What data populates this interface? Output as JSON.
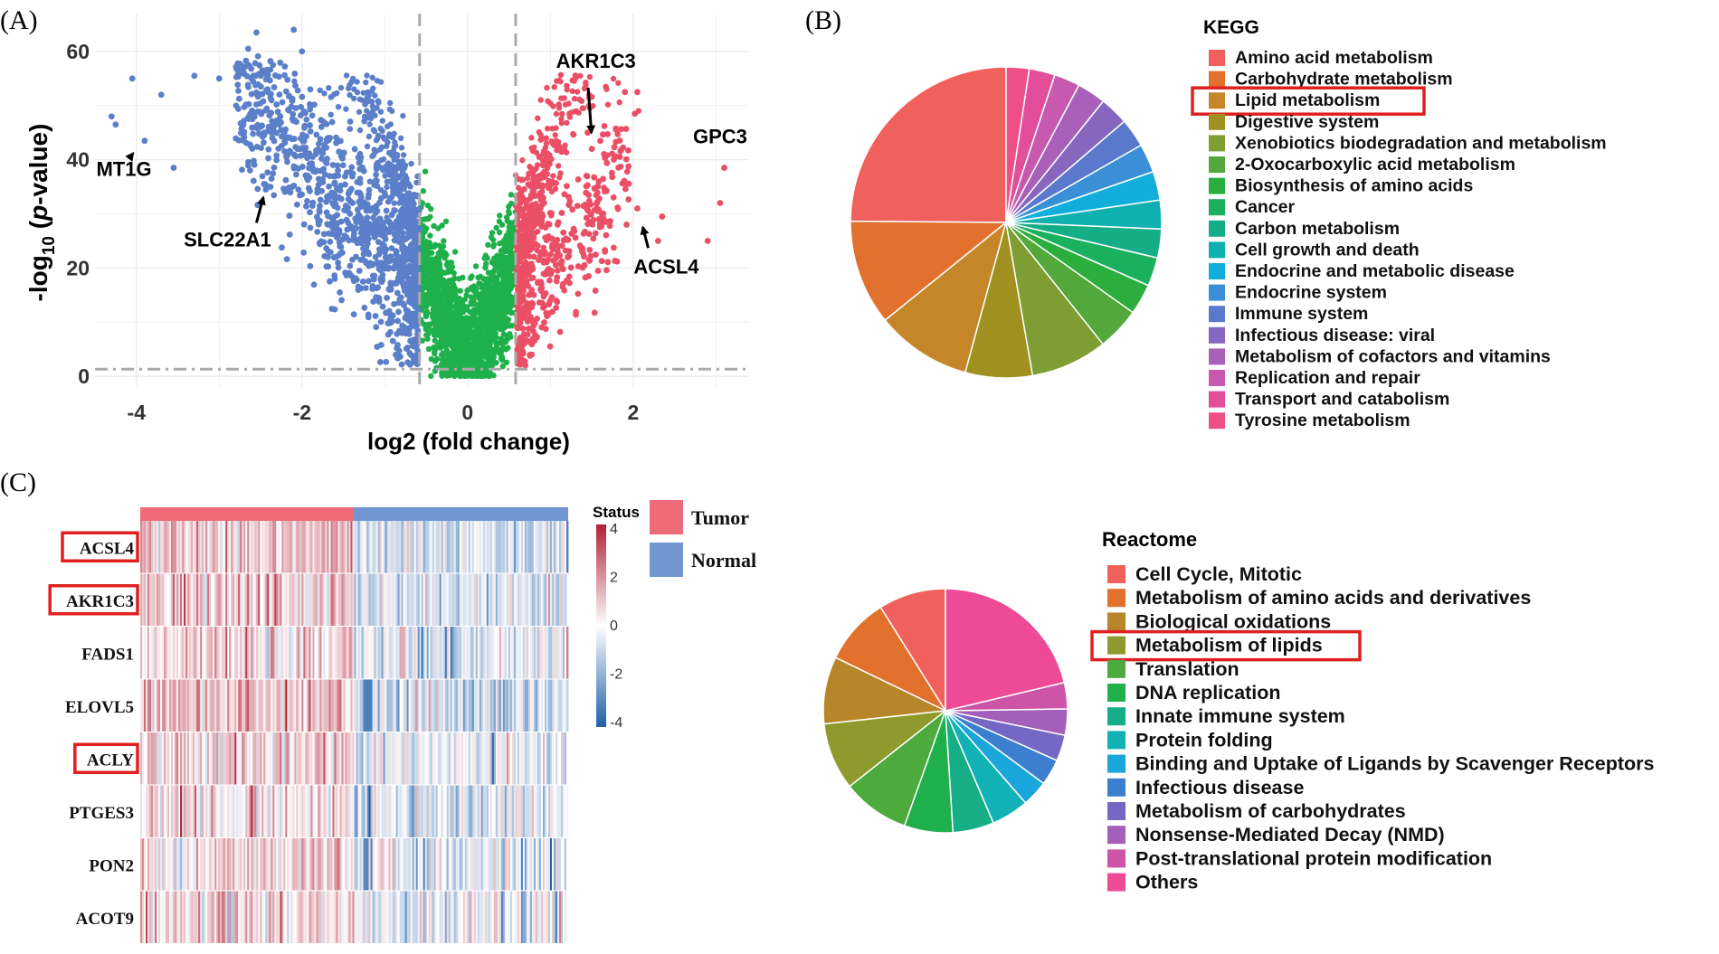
{
  "panels": {
    "a": "(A)",
    "b": "(B)",
    "c": "(C)"
  },
  "volcano": {
    "type": "scatter",
    "xlabel": "log2 (fold change)",
    "ylabel_prefix": "-log",
    "ylabel_sub": "10",
    "ylabel_open": " (",
    "ylabel_italic": "p",
    "ylabel_close": "-value)",
    "xlim": [
      -4.5,
      3.4
    ],
    "ylim": [
      -2,
      67
    ],
    "xticks": [
      -4,
      -2,
      0,
      2
    ],
    "yticks": [
      0,
      20,
      40,
      60
    ],
    "thresholds": {
      "log2fc": [
        -0.58,
        0.58
      ],
      "neglog10p": 1.3
    },
    "colors": {
      "down": "#5B7FC8",
      "ns": "#1FB04B",
      "up": "#EA4F66",
      "grid": "#ECECEC",
      "threshold": "#AAAAAA"
    },
    "extreme_down_points": [
      [
        -4.3,
        48
      ],
      [
        -4.25,
        46.5
      ],
      [
        -4.05,
        55
      ],
      [
        -3.9,
        43.5
      ],
      [
        -3.7,
        52
      ],
      [
        -3.55,
        38.5
      ],
      [
        -3.3,
        55.5
      ],
      [
        -3.0,
        55
      ],
      [
        -2.65,
        60.5
      ],
      [
        -2.55,
        63.5
      ],
      [
        -2.5,
        55.5
      ],
      [
        -2.35,
        57.5
      ],
      [
        -2.1,
        64
      ],
      [
        -2.0,
        60
      ],
      [
        -1.9,
        53
      ]
    ],
    "extreme_up_points": [
      [
        1.45,
        45
      ],
      [
        1.5,
        42
      ],
      [
        1.9,
        52.5
      ],
      [
        2.05,
        52.5
      ],
      [
        2.02,
        48.5
      ],
      [
        1.92,
        28
      ],
      [
        2.05,
        31
      ],
      [
        2.35,
        29.5
      ],
      [
        2.3,
        25
      ],
      [
        2.9,
        25
      ],
      [
        3.05,
        32
      ],
      [
        3.1,
        38.5
      ]
    ],
    "annotations": [
      {
        "label": "AKR1C3",
        "x": 1.5,
        "y": 44,
        "lx": 1.55,
        "ly": 57
      },
      {
        "label": "GPC3",
        "x": 3.1,
        "y": 39,
        "lx": 3.05,
        "ly": 43
      },
      {
        "label": "ACSL4",
        "x": 2.1,
        "y": 28.5,
        "lx": 2.4,
        "ly": 19
      },
      {
        "label": "MT1G",
        "x": -4.0,
        "y": 42,
        "lx": -4.15,
        "ly": 37
      },
      {
        "label": "SLC22A1",
        "x": -2.45,
        "y": 34,
        "lx": -2.9,
        "ly": 24
      }
    ]
  },
  "kegg": {
    "title": "KEGG",
    "type": "pie",
    "highlight": "Lipid metabolism",
    "slices": [
      {
        "label": "Amino acid metabolism",
        "value": 25,
        "color": "#F0605D"
      },
      {
        "label": "Carbohydrate metabolism",
        "value": 11,
        "color": "#E1712C"
      },
      {
        "label": "Lipid metabolism",
        "value": 10,
        "color": "#C5862A"
      },
      {
        "label": "Digestive system",
        "value": 7,
        "color": "#A0901F"
      },
      {
        "label": "Xenobiotics biodegradation and metabolism",
        "value": 8,
        "color": "#7E9D32"
      },
      {
        "label": "2-Oxocarboxylic acid metabolism",
        "value": 4.5,
        "color": "#52A83B"
      },
      {
        "label": "Biosynthesis of amino acids",
        "value": 3.2,
        "color": "#2CAE3F"
      },
      {
        "label": "Cancer",
        "value": 3,
        "color": "#1BB05E"
      },
      {
        "label": "Carbon metabolism",
        "value": 3,
        "color": "#14AE86"
      },
      {
        "label": "Cell growth and death",
        "value": 3,
        "color": "#10B0B0"
      },
      {
        "label": "Endocrine and metabolic disease",
        "value": 3,
        "color": "#11AEDC"
      },
      {
        "label": "Endocrine system",
        "value": 3,
        "color": "#3A8FD7"
      },
      {
        "label": "Immune system",
        "value": 3,
        "color": "#5B79CC"
      },
      {
        "label": "Infectious disease: viral",
        "value": 3,
        "color": "#8766C0"
      },
      {
        "label": "Metabolism of cofactors and vitamins",
        "value": 3,
        "color": "#A860B8"
      },
      {
        "label": "Replication and repair",
        "value": 2.7,
        "color": "#C75AAE"
      },
      {
        "label": "Transport and catabolism",
        "value": 2.7,
        "color": "#E24E9C"
      },
      {
        "label": "Tyrosine metabolism",
        "value": 2.4,
        "color": "#EE4F86"
      }
    ]
  },
  "reactome": {
    "title": "Reactome",
    "type": "pie",
    "highlight": "Metabolism of lipids",
    "slices": [
      {
        "label": "Cell Cycle, Mitotic",
        "value": 9,
        "color": "#F0605D"
      },
      {
        "label": "Metabolism of amino acids and derivatives",
        "value": 9,
        "color": "#E1712C"
      },
      {
        "label": "Biological oxidations",
        "value": 9,
        "color": "#B8862A"
      },
      {
        "label": "Metabolism of lipids",
        "value": 9,
        "color": "#8F9A2E"
      },
      {
        "label": "Translation",
        "value": 9,
        "color": "#4DAA3C"
      },
      {
        "label": "DNA replication",
        "value": 6.5,
        "color": "#1FB04B"
      },
      {
        "label": "Innate immune system",
        "value": 5.5,
        "color": "#15AE86"
      },
      {
        "label": "Protein folding",
        "value": 5,
        "color": "#12B1B5"
      },
      {
        "label": "Binding and Uptake of Ligands by Scavenger Receptors",
        "value": 3.5,
        "color": "#1AA6DB"
      },
      {
        "label": "Infectious disease",
        "value": 3.5,
        "color": "#3C7FCF"
      },
      {
        "label": "Metabolism of carbohydrates",
        "value": 3.5,
        "color": "#7568C4"
      },
      {
        "label": "Nonsense-Mediated Decay (NMD)",
        "value": 3.5,
        "color": "#A35FBA"
      },
      {
        "label": "Post-translational protein modification",
        "value": 3.5,
        "color": "#CC55A8"
      },
      {
        "label": "Others",
        "value": 21.5,
        "color": "#EE4B97"
      }
    ]
  },
  "heatmap": {
    "type": "heatmap",
    "genes": [
      "ACSL4",
      "AKR1C3",
      "FADS1",
      "ELOVL5",
      "ACLY",
      "PTGES3",
      "PON2",
      "ACOT9"
    ],
    "highlighted_genes": [
      "ACSL4",
      "AKR1C3",
      "ACLY"
    ],
    "gene_means_tumor": [
      0.9,
      0.8,
      0.55,
      0.9,
      0.7,
      0.5,
      0.5,
      0.6
    ],
    "gene_means_normal": [
      -0.5,
      -0.45,
      -0.3,
      -0.6,
      -0.4,
      -0.5,
      -0.3,
      -0.3
    ],
    "n_tumor_samples": 374,
    "n_normal_samples": 374,
    "status_title": "Status",
    "groups": [
      {
        "label": "Tumor",
        "color": "#EE6B7A"
      },
      {
        "label": "Normal",
        "color": "#7196D1"
      }
    ],
    "scale_range": [
      -4,
      4
    ],
    "scale_ticks": [
      "4",
      "2",
      "0",
      "-2",
      "-4"
    ],
    "scale_colors": {
      "high": "#B11F34",
      "mid": "#FFFFFF",
      "low": "#1F5FA8"
    }
  }
}
